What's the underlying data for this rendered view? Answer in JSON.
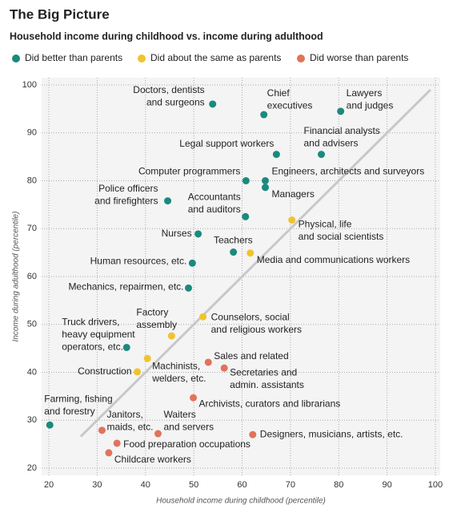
{
  "chart_data": {
    "type": "scatter",
    "title": "The Big Picture",
    "subtitle": "Household income during childhood vs. income during adulthood",
    "x_label": "Household income during childhood (percentile)",
    "y_label": "Income during adulthood (percentile)",
    "xlim": [
      18.5,
      101
    ],
    "ylim": [
      18.5,
      101.5
    ],
    "xticks": [
      20,
      30,
      40,
      50,
      60,
      70,
      80,
      90,
      100
    ],
    "yticks": [
      20,
      30,
      40,
      50,
      60,
      70,
      80,
      90,
      100
    ],
    "grid": true,
    "diagonal": [
      26.6,
      99
    ],
    "series": [
      {
        "name": "Did better than parents",
        "color": "#1a8a7e",
        "x": [
          53.9,
          64.5,
          80.4,
          76.4,
          67.1,
          60.8,
          64.8,
          64.8,
          44.6,
          60.7,
          50.9,
          58.2,
          49.7,
          48.9,
          36.1,
          20.2
        ],
        "values": [
          96.0,
          93.8,
          94.5,
          85.5,
          85.5,
          80.0,
          80.0,
          78.6,
          75.8,
          72.5,
          68.9,
          65.1,
          62.8,
          57.6,
          45.2,
          29.0
        ],
        "labels": [
          [
            "Doctors, dentists",
            "and surgeons"
          ],
          [
            "Chief",
            "executives"
          ],
          [
            "Lawyers",
            "and judges"
          ],
          [
            "Financial analysts",
            "and advisers"
          ],
          [
            "Legal support workers"
          ],
          [
            "Computer programmers"
          ],
          [
            "Engineers, architects and surveyors"
          ],
          [
            "Managers"
          ],
          [
            "Police officers",
            "and firefighters"
          ],
          [
            "Accountants",
            "and auditors"
          ],
          [
            "Nurses"
          ],
          [
            "Teachers"
          ],
          [
            "Human resources, etc."
          ],
          [
            "Mechanics, repairmen, etc."
          ],
          [
            "Truck drivers,",
            "heavy equipment",
            "operators, etc."
          ],
          [
            "Farming, fishing",
            "and forestry"
          ]
        ],
        "label_colors": [
          "#222",
          "#222",
          "#222",
          "#222",
          "#999",
          "#999",
          "#999",
          "#999",
          "#222",
          "#999",
          "#222",
          "#999",
          "#999",
          "#999",
          "#999",
          "#999"
        ]
      },
      {
        "name": "Did about the same as parents",
        "color": "#f0c32e",
        "x": [
          70.3,
          61.7,
          51.9,
          45.4,
          40.4,
          38.3
        ],
        "values": [
          71.8,
          64.9,
          51.6,
          47.6,
          42.9,
          40.1
        ],
        "labels": [
          [
            "Physical, life",
            "and social scientists"
          ],
          [
            "Media and communications workers"
          ],
          [
            "Counselors, social",
            "and religious workers"
          ],
          [
            "Factory",
            "assembly"
          ],
          [
            "Machinists,",
            "welders, etc."
          ],
          [
            "Construction"
          ]
        ],
        "label_colors": [
          "#999",
          "#222",
          "#999",
          "#222",
          "#222",
          "#999"
        ]
      },
      {
        "name": "Did worse than parents",
        "color": "#e0735c",
        "x": [
          53.0,
          56.3,
          49.9,
          42.6,
          62.2,
          31.0,
          34.1,
          32.4
        ],
        "values": [
          42.1,
          40.9,
          34.7,
          27.2,
          27.0,
          27.9,
          25.2,
          23.2
        ],
        "labels": [
          [
            "Sales and related"
          ],
          [
            "Secretaries and",
            "admin. assistants"
          ],
          [
            "Archivists, curators and librarians"
          ],
          [
            "Waiters",
            "and servers"
          ],
          [
            "Designers, musicians, artists, etc."
          ],
          [
            "Janitors,",
            "maids, etc."
          ],
          [
            "Food preparation occupations"
          ],
          [
            "Childcare workers"
          ]
        ],
        "label_colors": [
          "#999",
          "#999",
          "#222",
          "#999",
          "#222",
          "#222",
          "#222",
          "#222"
        ]
      }
    ]
  }
}
